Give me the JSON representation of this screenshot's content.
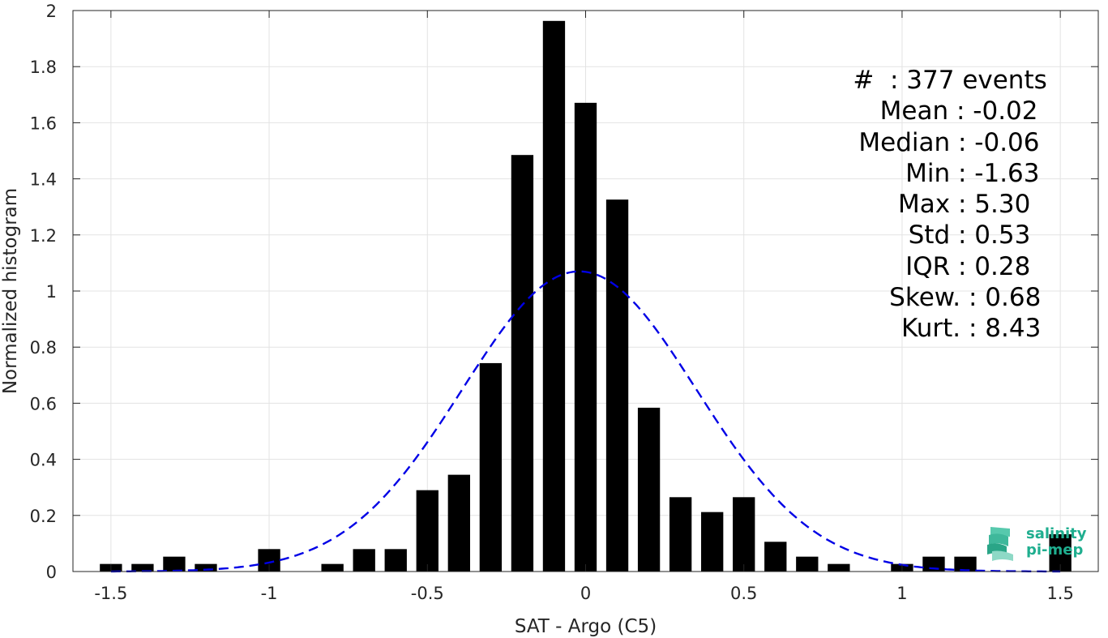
{
  "chart_data": {
    "type": "bar",
    "xlabel": "SAT - Argo (C5)",
    "ylabel": "Normalized histogram",
    "xlim": [
      -1.62,
      1.62
    ],
    "ylim": [
      0,
      2
    ],
    "xticks": [
      "-1.5",
      "-1",
      "-0.5",
      "0",
      "0.5",
      "1",
      "1.5"
    ],
    "xtick_values": [
      -1.5,
      -1,
      -0.5,
      0,
      0.5,
      1,
      1.5
    ],
    "yticks": [
      "0",
      "0.2",
      "0.4",
      "0.6",
      "0.8",
      "1",
      "1.2",
      "1.4",
      "1.6",
      "1.8",
      "2"
    ],
    "ytick_values": [
      0,
      0.2,
      0.4,
      0.6,
      0.8,
      1,
      1.2,
      1.4,
      1.6,
      1.8,
      2
    ],
    "grid": true,
    "bar_color": "#000000",
    "bars": [
      {
        "x": -1.5,
        "y": 0.027
      },
      {
        "x": -1.4,
        "y": 0.027
      },
      {
        "x": -1.3,
        "y": 0.053
      },
      {
        "x": -1.2,
        "y": 0.027
      },
      {
        "x": -1.0,
        "y": 0.08
      },
      {
        "x": -0.8,
        "y": 0.027
      },
      {
        "x": -0.7,
        "y": 0.08
      },
      {
        "x": -0.6,
        "y": 0.08
      },
      {
        "x": -0.5,
        "y": 0.29
      },
      {
        "x": -0.4,
        "y": 0.345
      },
      {
        "x": -0.3,
        "y": 0.743
      },
      {
        "x": -0.2,
        "y": 1.485
      },
      {
        "x": -0.1,
        "y": 1.963
      },
      {
        "x": 0.0,
        "y": 1.671
      },
      {
        "x": 0.1,
        "y": 1.326
      },
      {
        "x": 0.2,
        "y": 0.584
      },
      {
        "x": 0.3,
        "y": 0.265
      },
      {
        "x": 0.4,
        "y": 0.212
      },
      {
        "x": 0.5,
        "y": 0.265
      },
      {
        "x": 0.6,
        "y": 0.106
      },
      {
        "x": 0.7,
        "y": 0.053
      },
      {
        "x": 0.8,
        "y": 0.027
      },
      {
        "x": 1.0,
        "y": 0.027
      },
      {
        "x": 1.1,
        "y": 0.053
      },
      {
        "x": 1.2,
        "y": 0.053
      },
      {
        "x": 1.5,
        "y": 0.133
      }
    ],
    "fit": {
      "type": "gaussian",
      "mean": -0.02,
      "std": 0.37,
      "peak": 1.07,
      "color": "#0000e6",
      "style": "dashed"
    }
  },
  "stats": [
    {
      "label": "#  ",
      "sep": ": ",
      "value": "377 events"
    },
    {
      "label": "Mean ",
      "sep": ": ",
      "value": "-0.02"
    },
    {
      "label": "Median ",
      "sep": ": ",
      "value": "-0.06"
    },
    {
      "label": "Min ",
      "sep": ": ",
      "value": "-1.63"
    },
    {
      "label": "Max ",
      "sep": ": ",
      "value": "5.30"
    },
    {
      "label": "Std ",
      "sep": ": ",
      "value": "0.53"
    },
    {
      "label": "IQR ",
      "sep": ": ",
      "value": "0.28"
    },
    {
      "label": "Skew. ",
      "sep": ": ",
      "value": "0.68"
    },
    {
      "label": "Kurt. ",
      "sep": ": ",
      "value": "8.43"
    }
  ],
  "logo": {
    "line1": "salinity",
    "line2": "pi-mep",
    "color": "#1fae8f"
  }
}
